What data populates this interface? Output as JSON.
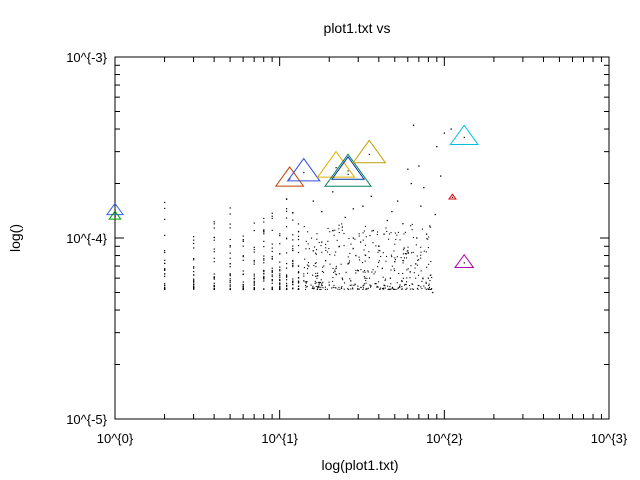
{
  "chart_data": {
    "type": "scatter",
    "title": "plot1.txt vs",
    "xlabel": "log(plot1.txt)",
    "ylabel": "log()",
    "x_scale": "log",
    "y_scale": "log",
    "xlim": [
      1,
      1000
    ],
    "ylim": [
      1e-05,
      0.001
    ],
    "x_ticks": [
      {
        "value": 1,
        "label": "10^{0}"
      },
      {
        "value": 10,
        "label": "10^{1}"
      },
      {
        "value": 100,
        "label": "10^{2}"
      },
      {
        "value": 1000,
        "label": "10^{3}"
      }
    ],
    "y_ticks": [
      {
        "value": 1e-05,
        "label": "10^{-5}"
      },
      {
        "value": 0.0001,
        "label": "10^{-4}"
      },
      {
        "value": 0.001,
        "label": "10^{-3}"
      }
    ],
    "grid": false,
    "legend": "none",
    "dot_series": {
      "color": "#000000",
      "description_columns": [
        {
          "x": 2,
          "y_min": 5.2e-05,
          "y_max": 0.00017
        },
        {
          "x": 3,
          "y_min": 5.2e-05,
          "y_max": 0.000104
        },
        {
          "x": 4,
          "y_min": 5.2e-05,
          "y_max": 0.000131
        },
        {
          "x": 5,
          "y_min": 5.2e-05,
          "y_max": 0.00015
        },
        {
          "x": 6,
          "y_min": 5.2e-05,
          "y_max": 0.000131
        },
        {
          "x": 7,
          "y_min": 5.2e-05,
          "y_max": 0.00014
        },
        {
          "x": 8,
          "y_min": 5.2e-05,
          "y_max": 0.000131
        },
        {
          "x": 9,
          "y_min": 5.2e-05,
          "y_max": 0.00014
        },
        {
          "x": 10,
          "y_min": 5.2e-05,
          "y_max": 0.000125
        },
        {
          "x": 11,
          "y_min": 5.2e-05,
          "y_max": 0.00019
        },
        {
          "x": 12,
          "y_min": 5.2e-05,
          "y_max": 0.00015
        },
        {
          "x": 13,
          "y_min": 5.2e-05,
          "y_max": 0.000125
        }
      ],
      "scatter_points": [
        [
          14,
          5.8e-05
        ],
        [
          15,
          7e-05
        ],
        [
          16,
          8.5e-05
        ],
        [
          17,
          6.2e-05
        ],
        [
          18,
          9.5e-05
        ],
        [
          19,
          7.5e-05
        ],
        [
          20,
          5.5e-05
        ],
        [
          21,
          0.00011
        ],
        [
          22,
          6.8e-05
        ],
        [
          23,
          9e-05
        ],
        [
          24,
          6e-05
        ],
        [
          25,
          0.00013
        ],
        [
          26,
          7.2e-05
        ],
        [
          27,
          5.8e-05
        ],
        [
          28,
          0.0001
        ],
        [
          29,
          8e-05
        ],
        [
          30,
          6.6e-05
        ],
        [
          32,
          0.00015
        ],
        [
          33,
          6e-05
        ],
        [
          35,
          7.8e-05
        ],
        [
          37,
          0.00011
        ],
        [
          38,
          5.6e-05
        ],
        [
          40,
          9e-05
        ],
        [
          42,
          6.8e-05
        ],
        [
          45,
          0.000125
        ],
        [
          47,
          6e-05
        ],
        [
          50,
          7.4e-05
        ],
        [
          52,
          0.00016
        ],
        [
          55,
          5.8e-05
        ],
        [
          58,
          8.2e-05
        ],
        [
          60,
          0.00024
        ],
        [
          62,
          6.5e-05
        ],
        [
          65,
          0.00042
        ],
        [
          68,
          0.0001
        ],
        [
          70,
          0.00025
        ],
        [
          75,
          0.00019
        ],
        [
          80,
          6e-05
        ],
        [
          85,
          5e-05
        ],
        [
          90,
          0.00032
        ],
        [
          95,
          0.00022
        ],
        [
          16,
          0.00016
        ],
        [
          18,
          0.00014
        ],
        [
          21,
          0.00018
        ],
        [
          24,
          0.000115
        ],
        [
          28,
          0.000145
        ],
        [
          31,
          9.5e-05
        ],
        [
          36,
          0.00017
        ],
        [
          43,
          0.000105
        ],
        [
          48,
          0.00014
        ],
        [
          56,
          0.00012
        ],
        [
          63,
          0.0002
        ],
        [
          72,
          0.00015
        ],
        [
          78,
          0.000105
        ],
        [
          88,
          0.000135
        ],
        [
          100,
          0.00038
        ],
        [
          110,
          0.0004
        ],
        [
          57,
          8.8e-05
        ],
        [
          67,
          7.2e-05
        ],
        [
          74,
          6e-05
        ],
        [
          82,
          0.000115
        ]
      ]
    },
    "highlight_markers": [
      {
        "x": 1.0,
        "y": 0.000142,
        "color": "#3060e0",
        "size": 7
      },
      {
        "x": 1.0,
        "y": 0.000132,
        "color": "#00a000",
        "size": 5
      },
      {
        "x": 11.5,
        "y": 0.000212,
        "color": "#c04000",
        "size": 12
      },
      {
        "x": 14.0,
        "y": 0.00023,
        "color": "#3050e0",
        "size": 14
      },
      {
        "x": 22.0,
        "y": 0.000245,
        "color": "#e0b000",
        "size": 16
      },
      {
        "x": 26.0,
        "y": 0.000225,
        "color": "#008060",
        "size": 20
      },
      {
        "x": 26.0,
        "y": 0.000235,
        "color": "#0030a0",
        "size": 14
      },
      {
        "x": 35.0,
        "y": 0.00029,
        "color": "#c0a000",
        "size": 14
      },
      {
        "x": 112.0,
        "y": 0.000168,
        "color": "#e00000",
        "size": 3
      },
      {
        "x": 132.0,
        "y": 0.00036,
        "color": "#00c0e0",
        "size": 12
      },
      {
        "x": 132.0,
        "y": 7.3e-05,
        "color": "#b000b0",
        "size": 8
      }
    ]
  }
}
